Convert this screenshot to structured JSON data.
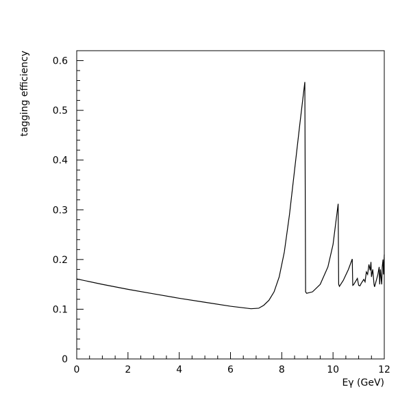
{
  "chart_data": {
    "type": "line",
    "title": "",
    "xlabel": "Eγ (GeV)",
    "ylabel": "tagging efficiency",
    "xlim": [
      0,
      12
    ],
    "ylim": [
      0,
      0.62
    ],
    "grid": false,
    "x_ticks": [
      "0",
      "2",
      "4",
      "6",
      "8",
      "10",
      "12"
    ],
    "y_ticks": [
      "0",
      "0.1",
      "0.2",
      "0.3",
      "0.4",
      "0.5",
      "0.6"
    ],
    "series": [
      {
        "color": "#000000",
        "x": [
          0,
          1,
          2,
          3,
          4,
          5,
          6,
          6.8,
          7.1,
          7.3,
          7.5,
          7.7,
          7.9,
          8.1,
          8.3,
          8.5,
          8.7,
          8.9,
          8.93,
          8.97,
          9.2,
          9.5,
          9.8,
          10.0,
          10.2,
          10.22,
          10.25,
          10.4,
          10.6,
          10.75,
          10.77,
          10.8,
          10.95,
          11.0,
          11.05,
          11.1,
          11.2,
          11.25,
          11.3,
          11.35,
          11.4,
          11.45,
          11.48,
          11.5,
          11.55,
          11.6,
          11.62,
          11.7,
          11.75,
          11.8,
          11.82,
          11.85,
          11.88,
          11.9,
          11.92,
          11.95,
          11.97,
          12.0
        ],
        "y": [
          0.161,
          0.15,
          0.14,
          0.131,
          0.122,
          0.114,
          0.106,
          0.101,
          0.102,
          0.108,
          0.118,
          0.135,
          0.165,
          0.215,
          0.29,
          0.38,
          0.47,
          0.557,
          0.135,
          0.132,
          0.135,
          0.15,
          0.185,
          0.23,
          0.312,
          0.15,
          0.146,
          0.158,
          0.18,
          0.201,
          0.148,
          0.149,
          0.162,
          0.148,
          0.147,
          0.152,
          0.16,
          0.155,
          0.175,
          0.17,
          0.19,
          0.178,
          0.195,
          0.165,
          0.18,
          0.15,
          0.145,
          0.16,
          0.17,
          0.185,
          0.15,
          0.18,
          0.16,
          0.15,
          0.185,
          0.2,
          0.17,
          0.21
        ]
      }
    ]
  }
}
